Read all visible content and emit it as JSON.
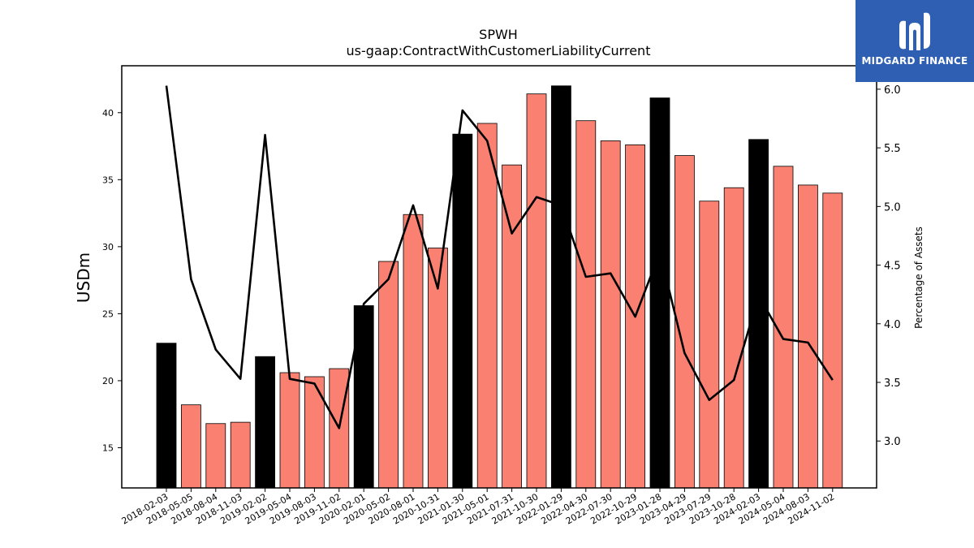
{
  "logo": {
    "text": "MIDGARD FINANCE"
  },
  "chart_data": {
    "type": "bar",
    "title": "SPWH",
    "subtitle": "us-gaap:ContractWithCustomerLiabilityCurrent",
    "ylabel": "USDm",
    "y2label": "Percentage of Assets",
    "ylim": [
      12,
      43.5
    ],
    "y2lim": [
      2.6,
      6.2
    ],
    "yticks": [
      15,
      20,
      25,
      30,
      35,
      40
    ],
    "y2ticks": [
      3.0,
      3.5,
      4.0,
      4.5,
      5.0,
      5.5,
      6.0
    ],
    "categories": [
      "2018-02-03",
      "2018-05-05",
      "2018-08-04",
      "2018-11-03",
      "2019-02-02",
      "2019-05-04",
      "2019-08-03",
      "2019-11-02",
      "2020-02-01",
      "2020-05-02",
      "2020-08-01",
      "2020-10-31",
      "2021-01-30",
      "2021-05-01",
      "2021-07-31",
      "2021-10-30",
      "2022-01-29",
      "2022-04-30",
      "2022-07-30",
      "2022-10-29",
      "2023-01-28",
      "2023-04-29",
      "2023-07-29",
      "2023-10-28",
      "2024-02-03",
      "2024-05-04",
      "2024-08-03",
      "2024-11-02"
    ],
    "series": [
      {
        "type": "bar",
        "values": [
          22.8,
          18.2,
          16.8,
          16.9,
          21.8,
          20.6,
          20.3,
          20.9,
          25.6,
          28.9,
          32.4,
          29.9,
          38.4,
          39.2,
          36.1,
          41.4,
          42.0,
          39.4,
          37.9,
          37.6,
          41.1,
          36.8,
          33.4,
          34.4,
          38.0,
          36.0,
          34.6,
          34.0
        ],
        "highlight": [
          true,
          false,
          false,
          false,
          true,
          false,
          false,
          false,
          true,
          false,
          false,
          false,
          true,
          false,
          false,
          false,
          true,
          false,
          false,
          false,
          true,
          false,
          false,
          false,
          true,
          false,
          false,
          false
        ],
        "color": "#fa8072",
        "highlight_color": "#000000"
      },
      {
        "type": "line",
        "axis": "right",
        "values": [
          6.03,
          4.38,
          3.78,
          3.53,
          5.61,
          3.53,
          3.49,
          3.11,
          4.17,
          4.38,
          5.01,
          4.3,
          5.82,
          5.56,
          4.77,
          5.08,
          5.01,
          4.4,
          4.43,
          4.06,
          4.61,
          3.75,
          3.35,
          3.52,
          4.24,
          3.87,
          3.84,
          3.52
        ],
        "color": "#000000"
      }
    ]
  }
}
